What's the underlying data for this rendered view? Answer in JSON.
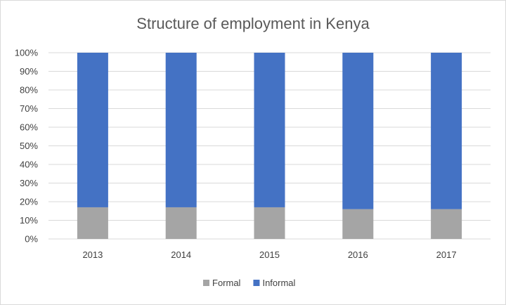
{
  "chart_data": {
    "type": "bar",
    "stacked": true,
    "title": "Structure of employment in Kenya",
    "categories": [
      "2013",
      "2014",
      "2015",
      "2016",
      "2017"
    ],
    "series": [
      {
        "name": "Formal",
        "color": "#a5a5a5",
        "values": [
          17,
          17,
          17,
          16,
          16
        ]
      },
      {
        "name": "Informal",
        "color": "#4472c4",
        "values": [
          83,
          83,
          83,
          84,
          84
        ]
      }
    ],
    "yticks": [
      "0%",
      "10%",
      "20%",
      "30%",
      "40%",
      "50%",
      "60%",
      "70%",
      "80%",
      "90%",
      "100%"
    ],
    "ylim": [
      0,
      100
    ],
    "grid": true,
    "legend": "bottom"
  }
}
